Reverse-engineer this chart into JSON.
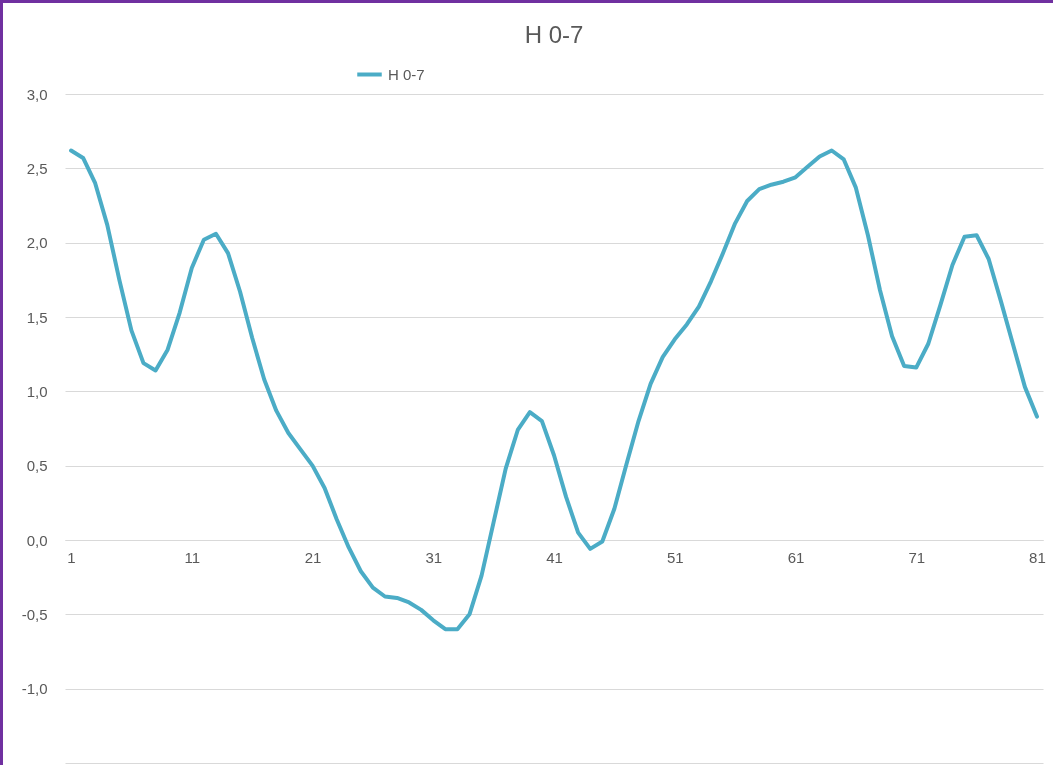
{
  "chart_data": {
    "type": "line",
    "title": "H 0-7",
    "categories": [
      "1",
      null,
      null,
      null,
      null,
      null,
      null,
      null,
      null,
      null,
      "11",
      null,
      null,
      null,
      null,
      null,
      null,
      null,
      null,
      null,
      "21",
      null,
      null,
      null,
      null,
      null,
      null,
      null,
      null,
      null,
      "31",
      null,
      null,
      null,
      null,
      null,
      null,
      null,
      null,
      null,
      "41",
      null,
      null,
      null,
      null,
      null,
      null,
      null,
      null,
      null,
      "51",
      null,
      null,
      null,
      null,
      null,
      null,
      null,
      null,
      null,
      "61",
      null,
      null,
      null,
      null,
      null,
      null,
      null,
      null,
      null,
      "71",
      null,
      null,
      null,
      null,
      null,
      null,
      null,
      null,
      null,
      "81"
    ],
    "series": [
      {
        "name": "H 0-7",
        "color": "#4bacc6",
        "values": [
          2.62,
          2.57,
          2.4,
          2.12,
          1.75,
          1.41,
          1.19,
          1.14,
          1.28,
          1.53,
          1.83,
          2.02,
          2.06,
          1.93,
          1.67,
          1.36,
          1.08,
          0.87,
          0.72,
          0.61,
          0.5,
          0.35,
          0.14,
          -0.05,
          -0.21,
          -0.32,
          -0.38,
          -0.39,
          -0.42,
          -0.47,
          -0.54,
          -0.6,
          -0.6,
          -0.5,
          -0.24,
          0.12,
          0.48,
          0.74,
          0.86,
          0.8,
          0.57,
          0.29,
          0.05,
          -0.06,
          -0.01,
          0.21,
          0.51,
          0.8,
          1.05,
          1.23,
          1.35,
          1.45,
          1.57,
          1.74,
          1.93,
          2.13,
          2.28,
          2.36,
          2.39,
          2.41,
          2.44,
          2.51,
          2.58,
          2.62,
          2.56,
          2.37,
          2.05,
          1.68,
          1.37,
          1.17,
          1.16,
          1.32,
          1.58,
          1.85,
          2.04,
          2.05,
          1.89,
          1.61,
          1.32,
          1.03,
          0.83
        ]
      }
    ],
    "ylim": [
      -1.5,
      3.0
    ],
    "yticks": [
      {
        "value": -1.5,
        "label": null
      },
      {
        "value": -1.0,
        "label": "-1,0"
      },
      {
        "value": -0.5,
        "label": "-0,5"
      },
      {
        "value": 0.0,
        "label": "0,0"
      },
      {
        "value": 0.5,
        "label": "0,5"
      },
      {
        "value": 1.0,
        "label": "1,0"
      },
      {
        "value": 1.5,
        "label": "1,5"
      },
      {
        "value": 2.0,
        "label": "2,0"
      },
      {
        "value": 2.5,
        "label": "2,5"
      },
      {
        "value": 3.0,
        "label": "3,0"
      }
    ],
    "grid": "y",
    "legend": "top",
    "line_style": "solid",
    "marker": "none"
  }
}
